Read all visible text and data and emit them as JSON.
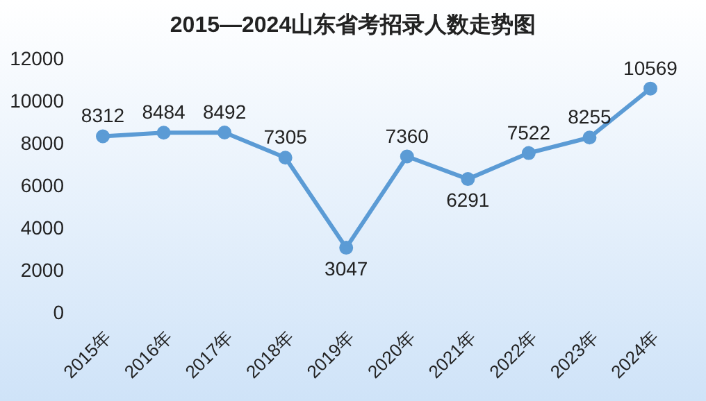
{
  "chart_data": {
    "type": "line",
    "title": "2015—2024山东省考招录人数走势图",
    "categories": [
      "2015年",
      "2016年",
      "2017年",
      "2018年",
      "2019年",
      "2020年",
      "2021年",
      "2022年",
      "2023年",
      "2024年"
    ],
    "series": [
      {
        "color": "#5b9bd5",
        "values": [
          8312,
          8484,
          8492,
          7305,
          3047,
          7360,
          6291,
          7522,
          8255,
          10569
        ]
      }
    ],
    "ylim": [
      0,
      12000
    ],
    "yticks": [
      0,
      2000,
      4000,
      6000,
      8000,
      10000,
      12000
    ],
    "grid": false,
    "legend": false,
    "marker": "circle",
    "line_style": "solid",
    "data_labels": true
  }
}
